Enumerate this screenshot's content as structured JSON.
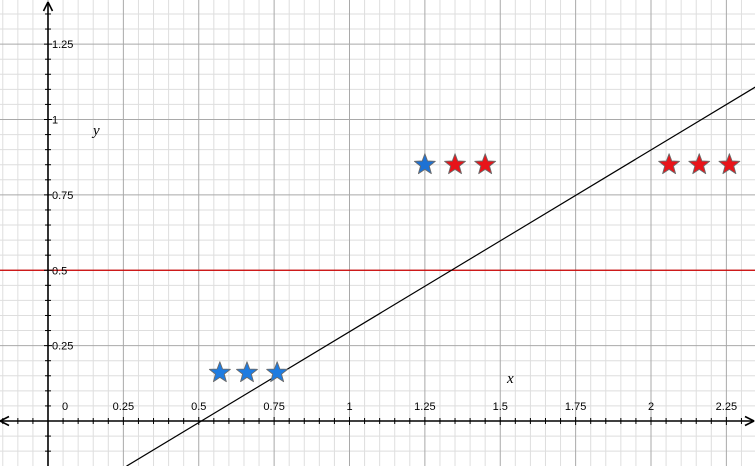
{
  "chart_data": {
    "type": "scatter",
    "title": "",
    "xlabel": "x",
    "ylabel": "y",
    "xlim": [
      -0.15,
      2.35
    ],
    "ylim": [
      -0.15,
      1.4
    ],
    "grid": true,
    "x_ticks": [
      0,
      0.25,
      0.5,
      0.75,
      1,
      1.25,
      1.5,
      1.75,
      2,
      2.25
    ],
    "x_tick_labels": [
      "0",
      "0.25",
      "0.5",
      "0.75",
      "1",
      "1.25",
      "1.5",
      "1.75",
      "2",
      "2.25"
    ],
    "y_ticks": [
      0.25,
      0.5,
      0.75,
      1,
      1.25
    ],
    "y_tick_labels": [
      "0.25",
      "0.5",
      "0.75",
      "1",
      "1.25"
    ],
    "marker": "star",
    "points": [
      {
        "x": 0.57,
        "y": 0.16,
        "color": "#1e7be0"
      },
      {
        "x": 0.66,
        "y": 0.16,
        "color": "#1e7be0"
      },
      {
        "x": 0.76,
        "y": 0.16,
        "color": "#1e7be0"
      },
      {
        "x": 1.25,
        "y": 0.85,
        "color": "#1e72d4"
      },
      {
        "x": 1.35,
        "y": 0.85,
        "color": "#e8141a"
      },
      {
        "x": 1.45,
        "y": 0.85,
        "color": "#e8141a"
      },
      {
        "x": 2.06,
        "y": 0.85,
        "color": "#e8141a"
      },
      {
        "x": 2.16,
        "y": 0.85,
        "color": "#e8141a"
      },
      {
        "x": 2.26,
        "y": 0.85,
        "color": "#e8141a"
      }
    ],
    "lines": [
      {
        "kind": "horizontal",
        "y": 0.5,
        "color": "#cc0000"
      },
      {
        "kind": "segment",
        "x1": 0.26,
        "y1": -0.15,
        "x2": 2.35,
        "y2": 1.11,
        "color": "#000000"
      }
    ]
  }
}
